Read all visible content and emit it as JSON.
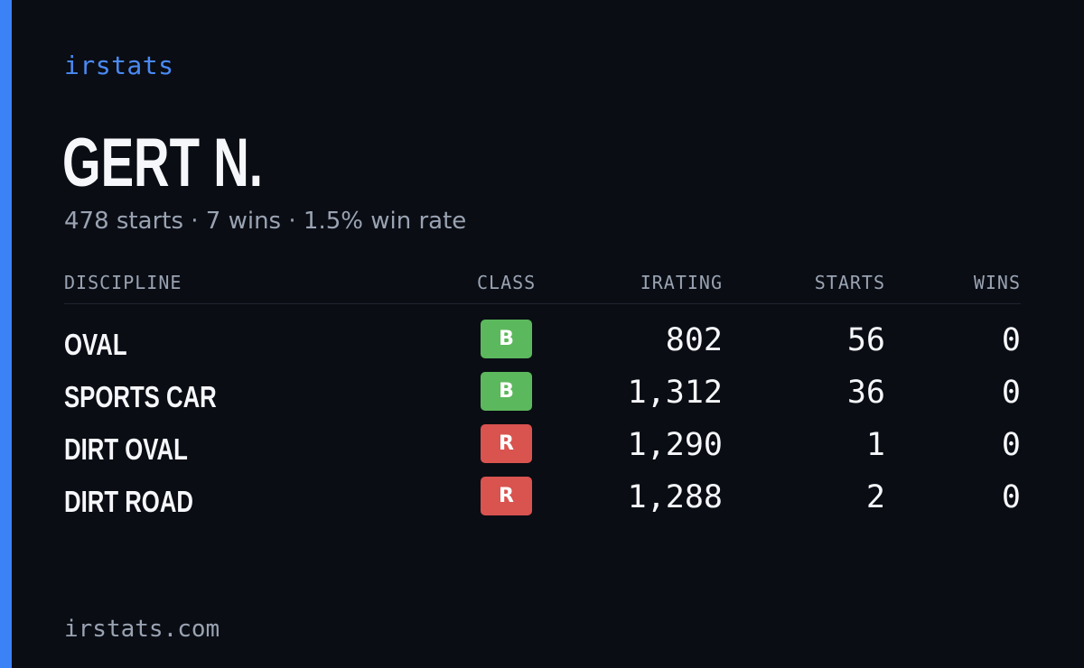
{
  "brand": "irstats",
  "player": {
    "name": "GERT N.",
    "summary": "478 starts · 7 wins · 1.5% win rate"
  },
  "colors": {
    "accent": "#3b82f6",
    "background": "#0a0d14",
    "class_b": "#5cb85c",
    "class_r": "#d9534f"
  },
  "table": {
    "headers": {
      "discipline": "DISCIPLINE",
      "class": "CLASS",
      "irating": "IRATING",
      "starts": "STARTS",
      "wins": "WINS"
    },
    "rows": [
      {
        "discipline": "OVAL",
        "class": "B",
        "irating": "802",
        "starts": "56",
        "wins": "0"
      },
      {
        "discipline": "SPORTS CAR",
        "class": "B",
        "irating": "1,312",
        "starts": "36",
        "wins": "0"
      },
      {
        "discipline": "DIRT OVAL",
        "class": "R",
        "irating": "1,290",
        "starts": "1",
        "wins": "0"
      },
      {
        "discipline": "DIRT ROAD",
        "class": "R",
        "irating": "1,288",
        "starts": "2",
        "wins": "0"
      }
    ]
  },
  "footer": "irstats.com"
}
